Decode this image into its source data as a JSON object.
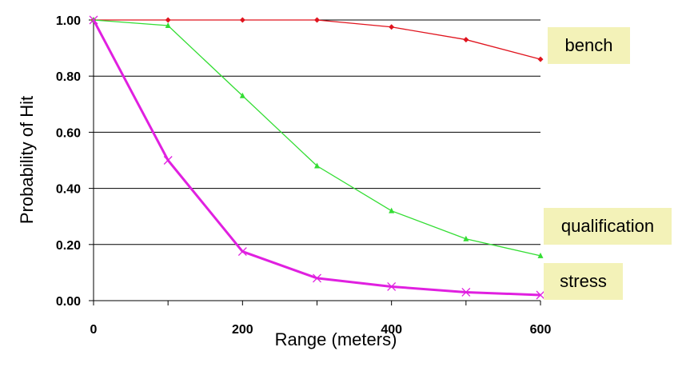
{
  "chart_data": {
    "type": "line",
    "title": "",
    "xlabel": "Range (meters)",
    "ylabel": "Probability of Hit",
    "xlim": [
      0,
      600
    ],
    "ylim": [
      0,
      1
    ],
    "x_ticks": [
      "0",
      "200",
      "400",
      "600"
    ],
    "y_ticks": [
      "0.00",
      "0.20",
      "0.40",
      "0.60",
      "0.80",
      "1.00"
    ],
    "grid": "horizontal",
    "x": [
      0,
      100,
      200,
      300,
      400,
      500,
      600
    ],
    "series": [
      {
        "name": "bench",
        "color": "#e0141e",
        "marker": "diamond",
        "values": [
          1.0,
          1.0,
          1.0,
          1.0,
          0.975,
          0.93,
          0.86
        ]
      },
      {
        "name": "qualification",
        "color": "#33dd33",
        "marker": "triangle",
        "values": [
          1.0,
          0.98,
          0.73,
          0.48,
          0.32,
          0.22,
          0.16
        ]
      },
      {
        "name": "stress",
        "color": "#e020e0",
        "marker": "x",
        "values": [
          1.0,
          0.5,
          0.175,
          0.08,
          0.05,
          0.03,
          0.02
        ]
      }
    ]
  }
}
